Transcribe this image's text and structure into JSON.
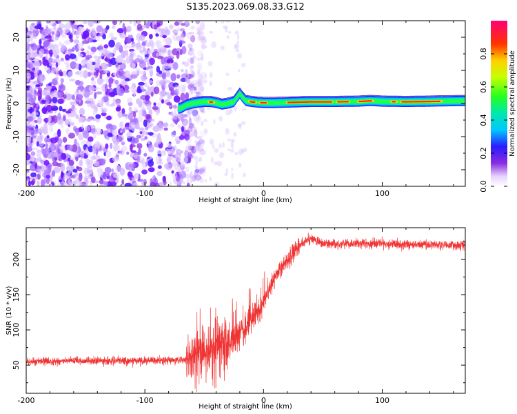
{
  "title": "S135.2023.069.08.33.G12",
  "chart_data": [
    {
      "type": "heatmap",
      "xlabel": "Height of straight line (km)",
      "ylabel": "Frequency (Hz)",
      "xlim": [
        -200,
        170
      ],
      "ylim": [
        -25,
        25
      ],
      "x_ticks": [
        -200,
        -100,
        0,
        100
      ],
      "y_ticks": [
        -20,
        -10,
        0,
        10,
        20
      ],
      "colorbar": {
        "label": "Normalized spectral amplitude",
        "range": [
          0.0,
          1.0
        ],
        "ticks": [
          0.0,
          0.2,
          0.4,
          0.6,
          0.8
        ],
        "tick_labels": [
          "0.0",
          "0.2",
          "0.4",
          "0.6",
          "0.8"
        ]
      },
      "ridge": {
        "x": [
          -70,
          -65,
          -60,
          -55,
          -50,
          -45,
          -40,
          -35,
          -30,
          -25,
          -22,
          -20,
          -18,
          -15,
          -10,
          -5,
          0,
          10,
          20,
          40,
          60,
          80,
          90,
          100,
          120,
          140,
          170
        ],
        "freq": [
          -1.5,
          -0.5,
          0.0,
          0.3,
          0.5,
          0.5,
          0.2,
          -0.3,
          0.0,
          0.5,
          2.0,
          3.0,
          2.0,
          0.8,
          0.5,
          0.3,
          0.2,
          0.2,
          0.3,
          0.5,
          0.5,
          0.6,
          0.8,
          0.6,
          0.5,
          0.6,
          0.8
        ]
      }
    },
    {
      "type": "line",
      "xlabel": "Height of straight line (km)",
      "ylabel": "SNR (10 * v/v)",
      "xlim": [
        -200,
        170
      ],
      "ylim": [
        10,
        245
      ],
      "x_ticks": [
        -200,
        -100,
        0,
        100
      ],
      "y_ticks": [
        50,
        100,
        150,
        200
      ],
      "series": [
        {
          "color": "#f03434",
          "x": [
            -200,
            -150,
            -100,
            -70,
            -62,
            -50,
            -40,
            -30,
            -20,
            -10,
            0,
            10,
            20,
            30,
            40,
            50,
            100,
            170
          ],
          "y": [
            55,
            56,
            56,
            57,
            60,
            70,
            75,
            85,
            95,
            115,
            140,
            175,
            200,
            220,
            230,
            222,
            222,
            220
          ]
        }
      ]
    }
  ]
}
